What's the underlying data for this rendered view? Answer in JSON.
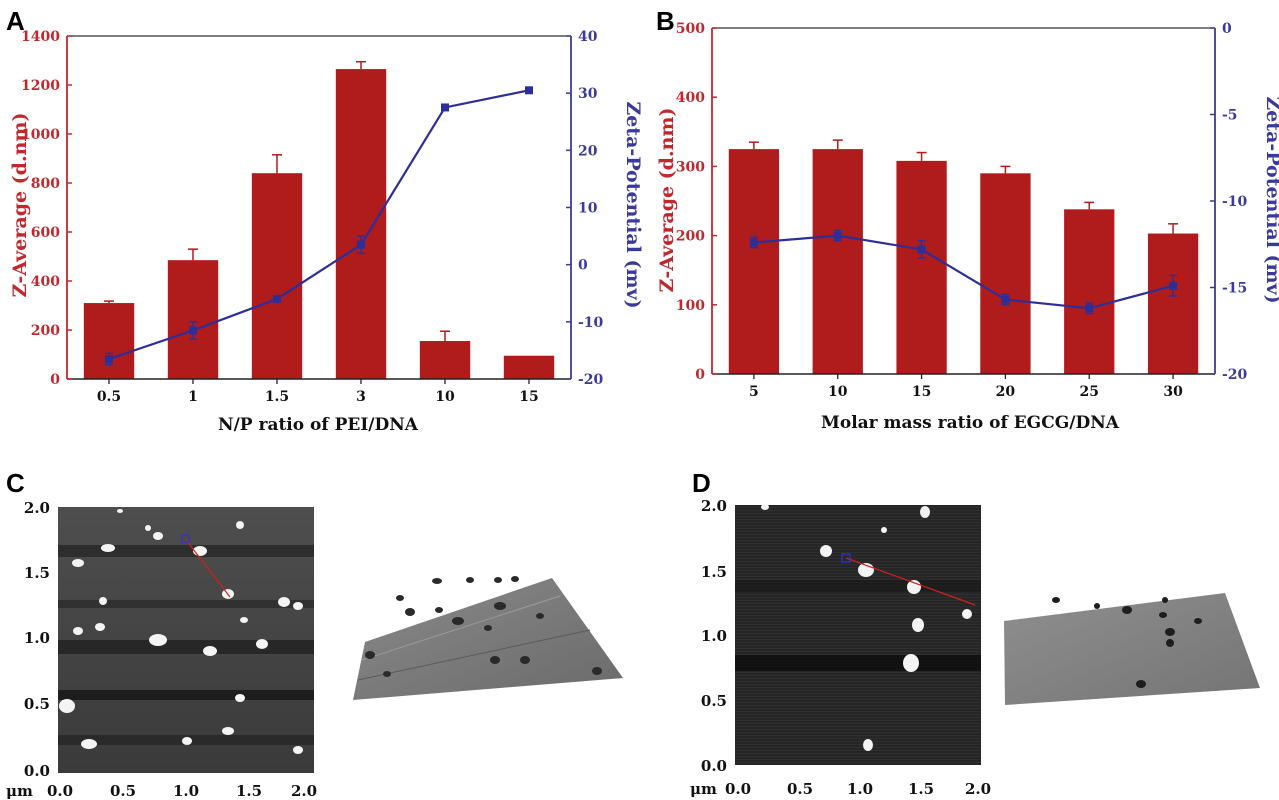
{
  "panels": {
    "A": "A",
    "B": "B",
    "C": "C",
    "D": "D"
  },
  "colors": {
    "bar": "#b01c1c",
    "line": "#2e2e99",
    "leftAxis": "#c0282d",
    "rightAxis": "#3a3a9a"
  },
  "chart_data": [
    {
      "type": "bar",
      "categories": [
        "0.5",
        "1",
        "1.5",
        "3",
        "10",
        "15"
      ],
      "xlabel": "N/P ratio of PEI/DNA",
      "ylabel": "Z-Average (d.nm)",
      "y2label": "Zeta-Potential (mv)",
      "ylim": [
        0,
        1400
      ],
      "y2lim": [
        -20,
        40
      ],
      "yticks": [
        "0",
        "200",
        "400",
        "600",
        "800",
        "1000",
        "1200",
        "1400"
      ],
      "y2ticks": [
        "-20",
        "-10",
        "0",
        "10",
        "20",
        "30",
        "40"
      ],
      "series": [
        {
          "type": "bar",
          "axis": "left",
          "values": [
            310,
            485,
            840,
            1265,
            155,
            95
          ],
          "errors": [
            8,
            45,
            75,
            30,
            40,
            0
          ]
        },
        {
          "type": "line",
          "axis": "right",
          "values": [
            -16.5,
            -11.5,
            -6,
            3.5,
            27.5,
            30.5
          ],
          "errors": [
            1,
            1.5,
            0.5,
            1.5,
            0.5,
            0.3
          ]
        }
      ]
    },
    {
      "type": "bar",
      "categories": [
        "5",
        "10",
        "15",
        "20",
        "25",
        "30"
      ],
      "xlabel": "Molar mass ratio of EGCG/DNA",
      "ylabel": "Z-Average (d.nm)",
      "y2label": "Zeta-Potential (mv)",
      "ylim": [
        0,
        500
      ],
      "y2lim": [
        -20,
        0
      ],
      "yticks": [
        "0",
        "100",
        "200",
        "300",
        "400",
        "500"
      ],
      "y2ticks": [
        "-20",
        "-15",
        "-10",
        "-5",
        "0"
      ],
      "series": [
        {
          "type": "bar",
          "axis": "left",
          "values": [
            325,
            325,
            308,
            290,
            238,
            203
          ],
          "errors": [
            10,
            13,
            12,
            10,
            10,
            14
          ]
        },
        {
          "type": "line",
          "axis": "right",
          "values": [
            -12.4,
            -12,
            -12.8,
            -15.7,
            -16.2,
            -14.9
          ],
          "errors": [
            0.3,
            0.3,
            0.5,
            0.3,
            0.3,
            0.6
          ]
        }
      ]
    }
  ],
  "afm": {
    "unit": "μm",
    "ticks": [
      "0.0",
      "0.5",
      "1.0",
      "1.5",
      "2.0"
    ]
  }
}
